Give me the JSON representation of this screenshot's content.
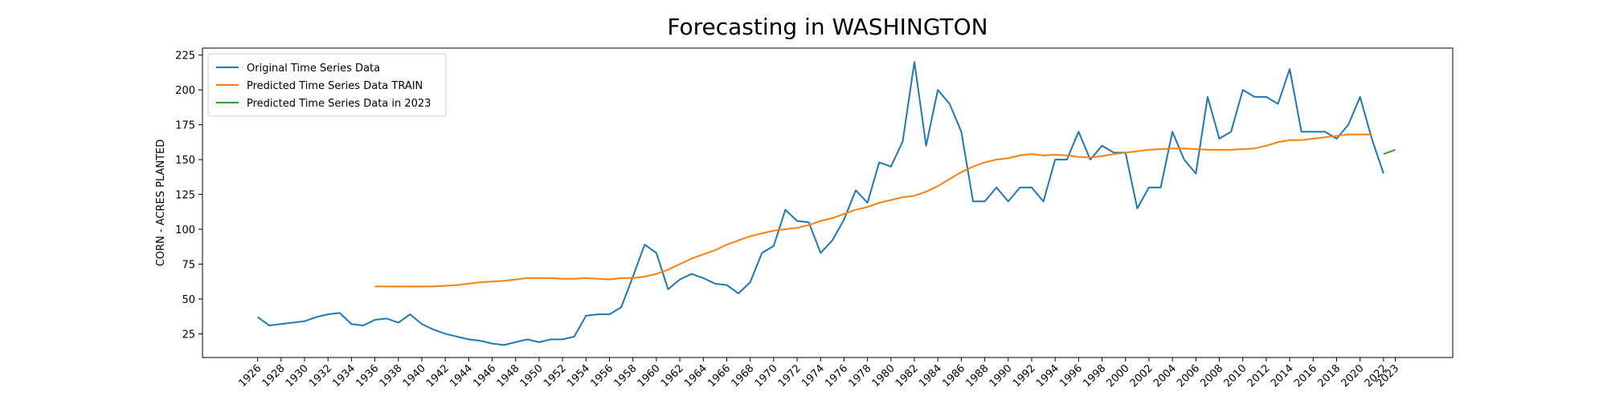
{
  "chart_data": {
    "type": "line",
    "title": "Forecasting in WASHINGTON",
    "y_label": "CORN - ACRES PLANTED",
    "xlim": [
      1921.3,
      2027.9
    ],
    "ylim": [
      8,
      230
    ],
    "xticks": [
      1926,
      1928,
      1930,
      1932,
      1934,
      1936,
      1938,
      1940,
      1942,
      1944,
      1946,
      1948,
      1950,
      1952,
      1954,
      1956,
      1958,
      1960,
      1962,
      1964,
      1966,
      1968,
      1970,
      1972,
      1974,
      1976,
      1978,
      1980,
      1982,
      1984,
      1986,
      1988,
      1990,
      1992,
      1994,
      1996,
      1998,
      2000,
      2002,
      2004,
      2006,
      2008,
      2010,
      2012,
      2014,
      2016,
      2018,
      2020,
      2022,
      2023
    ],
    "yticks": [
      25,
      50,
      75,
      100,
      125,
      150,
      175,
      200,
      225
    ],
    "legend": "upper left",
    "series": [
      {
        "name": "Original Time Series Data",
        "color": "#1f77b4",
        "x": [
          1926,
          1927,
          1928,
          1929,
          1930,
          1931,
          1932,
          1933,
          1934,
          1935,
          1936,
          1937,
          1938,
          1939,
          1940,
          1941,
          1942,
          1943,
          1944,
          1945,
          1946,
          1947,
          1948,
          1949,
          1950,
          1951,
          1952,
          1953,
          1954,
          1955,
          1956,
          1957,
          1958,
          1959,
          1960,
          1961,
          1962,
          1963,
          1964,
          1965,
          1966,
          1967,
          1968,
          1969,
          1970,
          1971,
          1972,
          1973,
          1974,
          1975,
          1976,
          1977,
          1978,
          1979,
          1980,
          1981,
          1982,
          1983,
          1984,
          1985,
          1986,
          1987,
          1988,
          1989,
          1990,
          1991,
          1992,
          1993,
          1994,
          1995,
          1996,
          1997,
          1998,
          1999,
          2000,
          2001,
          2002,
          2003,
          2004,
          2005,
          2006,
          2007,
          2008,
          2009,
          2010,
          2011,
          2012,
          2013,
          2014,
          2015,
          2016,
          2017,
          2018,
          2019,
          2020,
          2021,
          2022
        ],
        "values": [
          37,
          31,
          32,
          33,
          34,
          37,
          39,
          40,
          32,
          31,
          35,
          36,
          33,
          39,
          32,
          28,
          25,
          23,
          21,
          20,
          18,
          17,
          19,
          21,
          19,
          21,
          21,
          23,
          38,
          39,
          39,
          44,
          66,
          89,
          83,
          57,
          64,
          68,
          65,
          61,
          60,
          54,
          62,
          83,
          88,
          114,
          106,
          105,
          83,
          92,
          107,
          128,
          119,
          148,
          145,
          163,
          220,
          160,
          200,
          190,
          170,
          120,
          120,
          130,
          120,
          130,
          130,
          120,
          150,
          150,
          170,
          150,
          160,
          155,
          155,
          115,
          130,
          130,
          170,
          150,
          140,
          195,
          165,
          170,
          200,
          195,
          195,
          190,
          215,
          170,
          170,
          170,
          165,
          175,
          195,
          165,
          140
        ]
      },
      {
        "name": "Predicted Time Series Data TRAIN",
        "color": "#ff7f0e",
        "x": [
          1936,
          1937,
          1938,
          1939,
          1940,
          1941,
          1942,
          1943,
          1944,
          1945,
          1946,
          1947,
          1948,
          1949,
          1950,
          1951,
          1952,
          1953,
          1954,
          1955,
          1956,
          1957,
          1958,
          1959,
          1960,
          1961,
          1962,
          1963,
          1964,
          1965,
          1966,
          1967,
          1968,
          1969,
          1970,
          1971,
          1972,
          1973,
          1974,
          1975,
          1976,
          1977,
          1978,
          1979,
          1980,
          1981,
          1982,
          1983,
          1984,
          1985,
          1986,
          1987,
          1988,
          1989,
          1990,
          1991,
          1992,
          1993,
          1994,
          1995,
          1996,
          1997,
          1998,
          1999,
          2000,
          2001,
          2002,
          2003,
          2004,
          2005,
          2006,
          2007,
          2008,
          2009,
          2010,
          2011,
          2012,
          2013,
          2014,
          2015,
          2016,
          2017,
          2018,
          2019,
          2020,
          2021
        ],
        "values": [
          59,
          59,
          59,
          59,
          59,
          59,
          59.5,
          60,
          61,
          62,
          62.5,
          63,
          64,
          65,
          65,
          65,
          64.5,
          64.5,
          65,
          64.5,
          64,
          65,
          65,
          66,
          68,
          71,
          75,
          79,
          82,
          85,
          89,
          92,
          95,
          97,
          99,
          100,
          101,
          103,
          106,
          108,
          111,
          114,
          116,
          119,
          121,
          123,
          124,
          127,
          131,
          136,
          141,
          145,
          148,
          150,
          151,
          153,
          154,
          153,
          153.5,
          153,
          152,
          151.5,
          152.5,
          154,
          155,
          156,
          157,
          157.5,
          158,
          158,
          157.5,
          157,
          157,
          157,
          157.5,
          158,
          160,
          162.5,
          164,
          164,
          165,
          166,
          167,
          168,
          168,
          168
        ]
      },
      {
        "name": "Predicted Time Series Data in 2023",
        "color": "#2ca02c",
        "x": [
          2022,
          2023
        ],
        "values": [
          154,
          157
        ]
      }
    ]
  }
}
